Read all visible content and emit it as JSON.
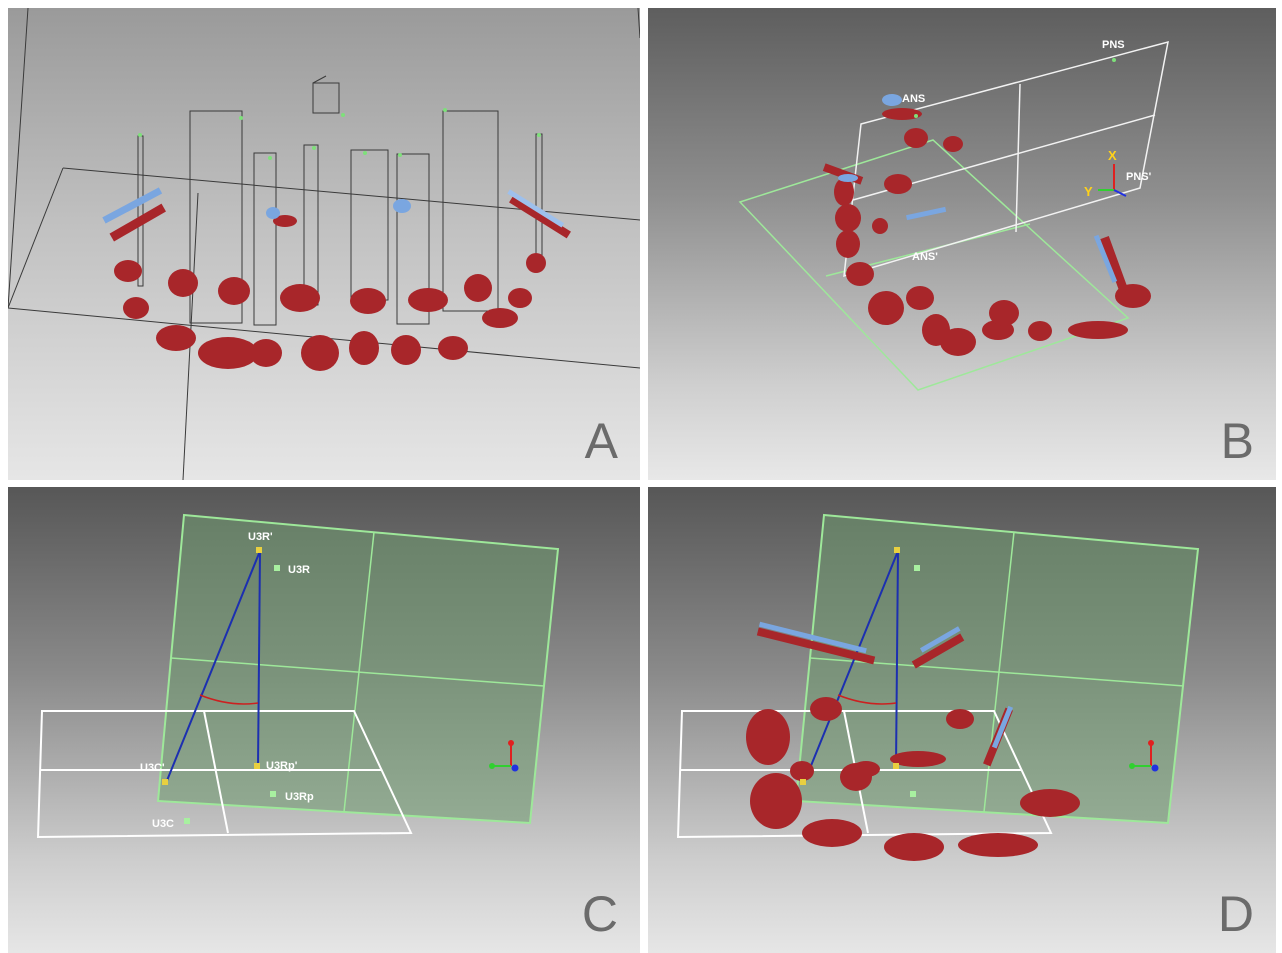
{
  "panels": {
    "a": {
      "letter": "A"
    },
    "b": {
      "letter": "B",
      "labels": {
        "ans": "ANS",
        "pns": "PNS",
        "ans_prime": "ANS'",
        "pns_prime": "PNS'"
      },
      "axis": {
        "x": "X",
        "y": "Y"
      }
    },
    "c": {
      "letter": "C",
      "labels": {
        "u3r_prime": "U3R'",
        "u3r": "U3R",
        "u3c_prime": "U3C'",
        "u3rp_prime": "U3Rp'",
        "u3rp": "U3Rp",
        "u3c": "U3C"
      }
    },
    "d": {
      "letter": "D"
    }
  },
  "colors": {
    "tooth": "#a8262a",
    "bracket": "#7aa6e0",
    "green_plane": "#8fe08a",
    "line": "#1c2fb0",
    "angle": "#cc2020"
  }
}
